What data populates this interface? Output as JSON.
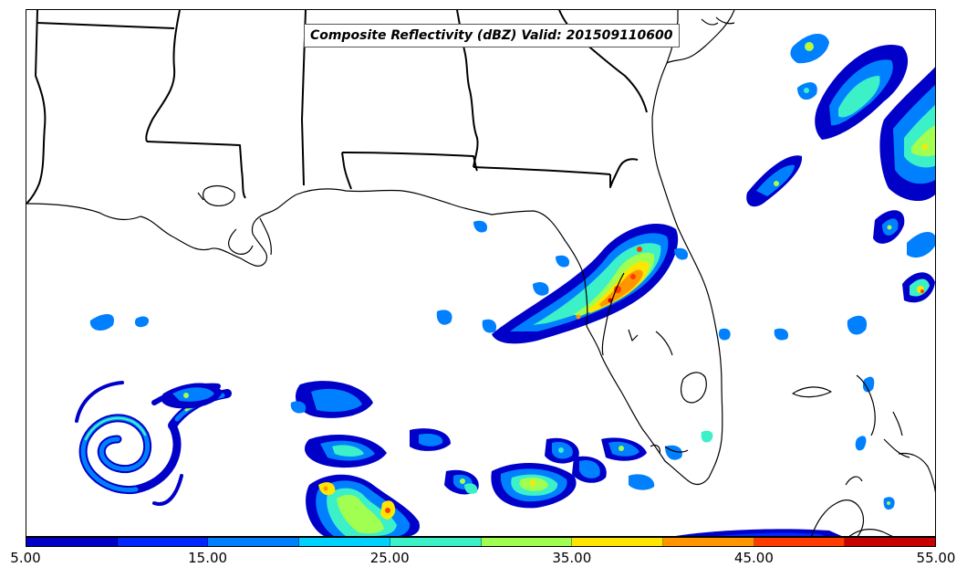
{
  "title": "Composite Reflectivity (dBZ) Valid: 201509110600",
  "colorbar": {
    "colors": [
      "#0000c8",
      "#0028ff",
      "#0080ff",
      "#00d2ff",
      "#3cf0c8",
      "#a0ff50",
      "#ffe600",
      "#ff9600",
      "#ff3c00",
      "#c80000"
    ],
    "tick_labels": [
      "5.00",
      "15.00",
      "25.00",
      "35.00",
      "45.00",
      "55.00"
    ]
  },
  "map": {
    "coastline_color": "#000000",
    "state_border_color": "#000000",
    "background": "#ffffff"
  }
}
